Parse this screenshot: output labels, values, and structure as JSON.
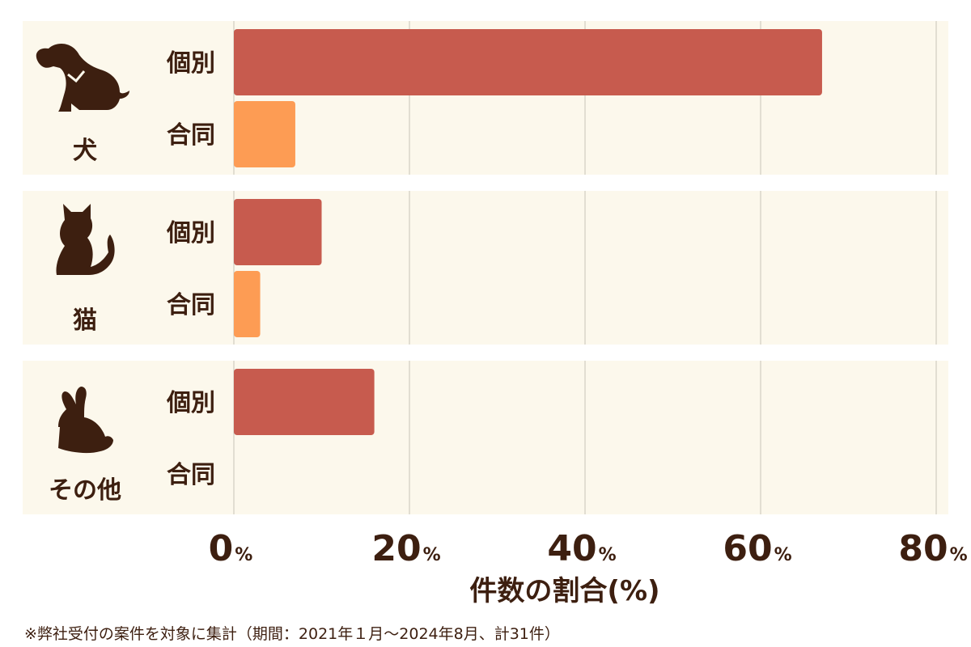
{
  "chart_data": {
    "type": "bar",
    "orientation": "horizontal",
    "categories": [
      "犬",
      "猫",
      "その他"
    ],
    "series": [
      {
        "name": "個別",
        "color": "#c75b4e",
        "values": [
          67,
          10,
          16
        ]
      },
      {
        "name": "合同",
        "color": "#fd9c54",
        "values": [
          7,
          3,
          0
        ]
      }
    ],
    "xlim": [
      0,
      80
    ],
    "x_ticks": [
      0,
      20,
      40,
      60,
      80
    ],
    "tick_unit": "%",
    "xlabel": "件数の割合(%)",
    "grid": true,
    "category_icons": [
      "dog-icon",
      "cat-icon",
      "rabbit-icon"
    ],
    "panel_color": "#fcf8ec",
    "text_color": "#3d1f10"
  },
  "footnote": "※弊社受付の案件を対象に集計（期間：2021年１月〜2024年8月、計31件）"
}
